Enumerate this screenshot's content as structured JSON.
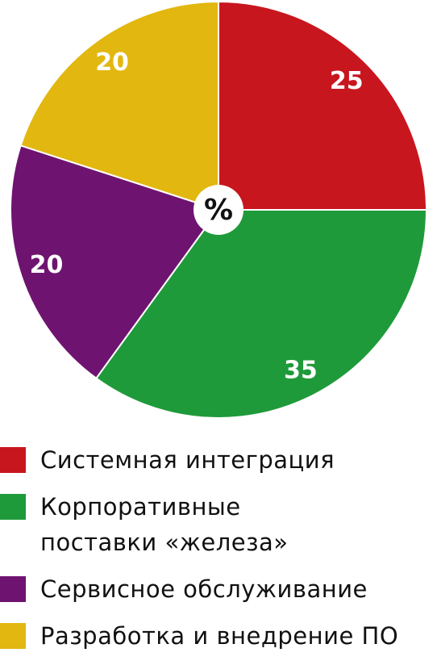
{
  "chart_data": {
    "type": "pie",
    "center_label": "%",
    "categories": [
      "Системная интеграция",
      "Корпоративные поставки «железа»",
      "Сервисное обслуживание",
      "Разработка и внедрение ПО"
    ],
    "values": [
      25,
      35,
      20,
      20
    ],
    "colors": [
      "#c8161e",
      "#1f9a3a",
      "#6e1470",
      "#e2b70f"
    ]
  }
}
